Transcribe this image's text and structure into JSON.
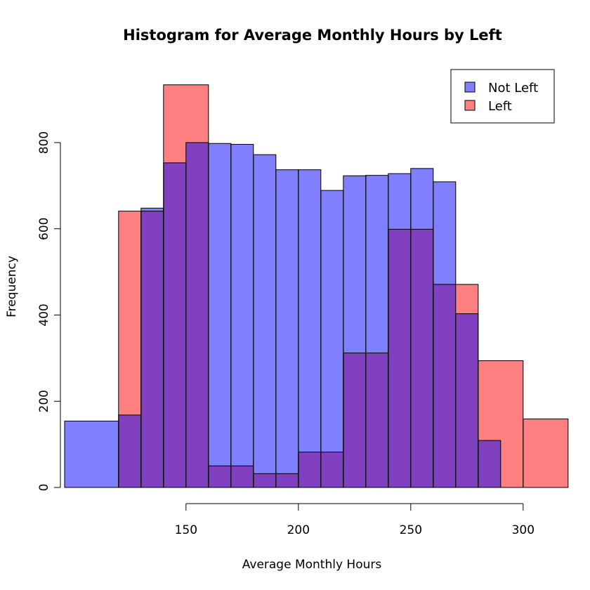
{
  "chart_data": {
    "type": "histogram",
    "title": "Histogram for Average Monthly Hours by Left",
    "xlabel": "Average Monthly Hours",
    "ylabel": "Frequency",
    "xlim": [
      96,
      320
    ],
    "ylim": [
      0,
      935
    ],
    "x_ticks": [
      150,
      200,
      250,
      300
    ],
    "y_ticks": [
      0,
      200,
      400,
      600,
      800
    ],
    "x_axis_range": [
      150,
      300
    ],
    "legend_position": "top-right",
    "colors": {
      "not_left": "#8080ff",
      "left": "#ff8080",
      "overlap": "#8040c0"
    },
    "series": [
      {
        "name": "Not Left",
        "color": "#8080ff",
        "bins": [
          {
            "x0": 96,
            "x1": 120,
            "count": 154
          },
          {
            "x0": 120,
            "x1": 130,
            "count": 168
          },
          {
            "x0": 130,
            "x1": 140,
            "count": 648
          },
          {
            "x0": 140,
            "x1": 150,
            "count": 753
          },
          {
            "x0": 150,
            "x1": 160,
            "count": 800
          },
          {
            "x0": 160,
            "x1": 170,
            "count": 798
          },
          {
            "x0": 170,
            "x1": 180,
            "count": 796
          },
          {
            "x0": 180,
            "x1": 190,
            "count": 772
          },
          {
            "x0": 190,
            "x1": 200,
            "count": 737
          },
          {
            "x0": 200,
            "x1": 210,
            "count": 737
          },
          {
            "x0": 210,
            "x1": 220,
            "count": 689
          },
          {
            "x0": 220,
            "x1": 230,
            "count": 723
          },
          {
            "x0": 230,
            "x1": 240,
            "count": 724
          },
          {
            "x0": 240,
            "x1": 250,
            "count": 728
          },
          {
            "x0": 250,
            "x1": 260,
            "count": 740
          },
          {
            "x0": 260,
            "x1": 270,
            "count": 709
          },
          {
            "x0": 270,
            "x1": 280,
            "count": 403
          },
          {
            "x0": 280,
            "x1": 290,
            "count": 109
          }
        ]
      },
      {
        "name": "Left",
        "color": "#ff8080",
        "bins": [
          {
            "x0": 120,
            "x1": 130,
            "count": 641
          },
          {
            "x0": 130,
            "x1": 140,
            "count": 641
          },
          {
            "x0": 140,
            "x1": 160,
            "count": 934
          },
          {
            "x0": 160,
            "x1": 180,
            "count": 50
          },
          {
            "x0": 180,
            "x1": 200,
            "count": 32
          },
          {
            "x0": 200,
            "x1": 220,
            "count": 82
          },
          {
            "x0": 220,
            "x1": 240,
            "count": 312
          },
          {
            "x0": 240,
            "x1": 260,
            "count": 599
          },
          {
            "x0": 260,
            "x1": 280,
            "count": 471
          },
          {
            "x0": 280,
            "x1": 300,
            "count": 294
          },
          {
            "x0": 300,
            "x1": 320,
            "count": 159
          }
        ]
      }
    ]
  }
}
